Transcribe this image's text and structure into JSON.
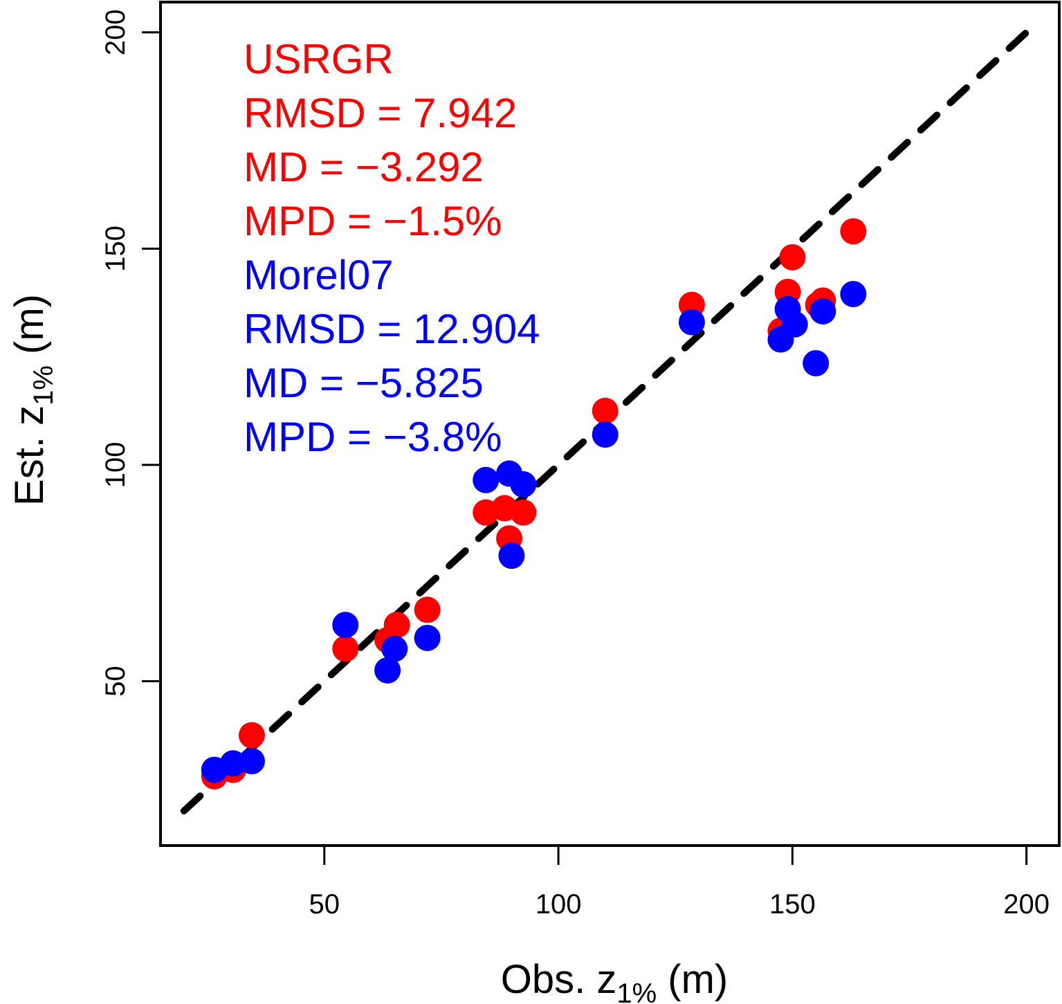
{
  "chart_data": {
    "type": "scatter",
    "title": "",
    "xlabel": {
      "prefix": "Obs. z",
      "sub": "1%",
      "suffix": " (m)"
    },
    "ylabel": {
      "prefix": "Est. z",
      "sub": "1%",
      "suffix": " (m)"
    },
    "xlim": [
      15,
      207
    ],
    "ylim": [
      12,
      207
    ],
    "x_ticks": [
      50,
      100,
      150,
      200
    ],
    "y_ticks": [
      50,
      100,
      150,
      200
    ],
    "grid": false,
    "reference_line": {
      "from": [
        20,
        20
      ],
      "to": [
        200,
        200
      ],
      "style": "dashed",
      "color": "#000000"
    },
    "annotations": [
      {
        "text": "USRGR",
        "color": "#ff0000"
      },
      {
        "text": "RMSD = 7.942",
        "color": "#ff0000"
      },
      {
        "text": "MD = −3.292",
        "color": "#ff0000"
      },
      {
        "text": "MPD = −1.5%",
        "color": "#ff0000"
      },
      {
        "text": "Morel07",
        "color": "#0000ff"
      },
      {
        "text": "RMSD = 12.904",
        "color": "#0000ff"
      },
      {
        "text": "MD = −5.825",
        "color": "#0000ff"
      },
      {
        "text": "MPD = −3.8%",
        "color": "#0000ff"
      }
    ],
    "series": [
      {
        "name": "USRGR",
        "color": "#ff0000",
        "points": [
          [
            26.5,
            28
          ],
          [
            30.5,
            29.5
          ],
          [
            34.5,
            37.5
          ],
          [
            54.5,
            57.5
          ],
          [
            63.5,
            59.5
          ],
          [
            65.5,
            63
          ],
          [
            72,
            66.5
          ],
          [
            84.5,
            89
          ],
          [
            88.5,
            90
          ],
          [
            92.5,
            89
          ],
          [
            89.5,
            83
          ],
          [
            110,
            112.5
          ],
          [
            128.5,
            137
          ],
          [
            147.5,
            131
          ],
          [
            149,
            140
          ],
          [
            150,
            148
          ],
          [
            155.5,
            137
          ],
          [
            156.5,
            138
          ],
          [
            163,
            154
          ]
        ]
      },
      {
        "name": "Morel07",
        "color": "#0000ff",
        "points": [
          [
            26.5,
            29.5
          ],
          [
            30.5,
            31
          ],
          [
            34.5,
            31.5
          ],
          [
            54.5,
            63
          ],
          [
            63.5,
            52.5
          ],
          [
            65,
            57.5
          ],
          [
            72,
            60
          ],
          [
            84.5,
            96.5
          ],
          [
            89.5,
            98
          ],
          [
            92.5,
            95.5
          ],
          [
            90,
            79
          ],
          [
            110,
            107
          ],
          [
            128.5,
            133
          ],
          [
            147.5,
            129
          ],
          [
            149,
            136
          ],
          [
            150.5,
            132.5
          ],
          [
            155,
            123.5
          ],
          [
            156.5,
            135.5
          ],
          [
            163,
            139.5
          ]
        ]
      }
    ]
  }
}
